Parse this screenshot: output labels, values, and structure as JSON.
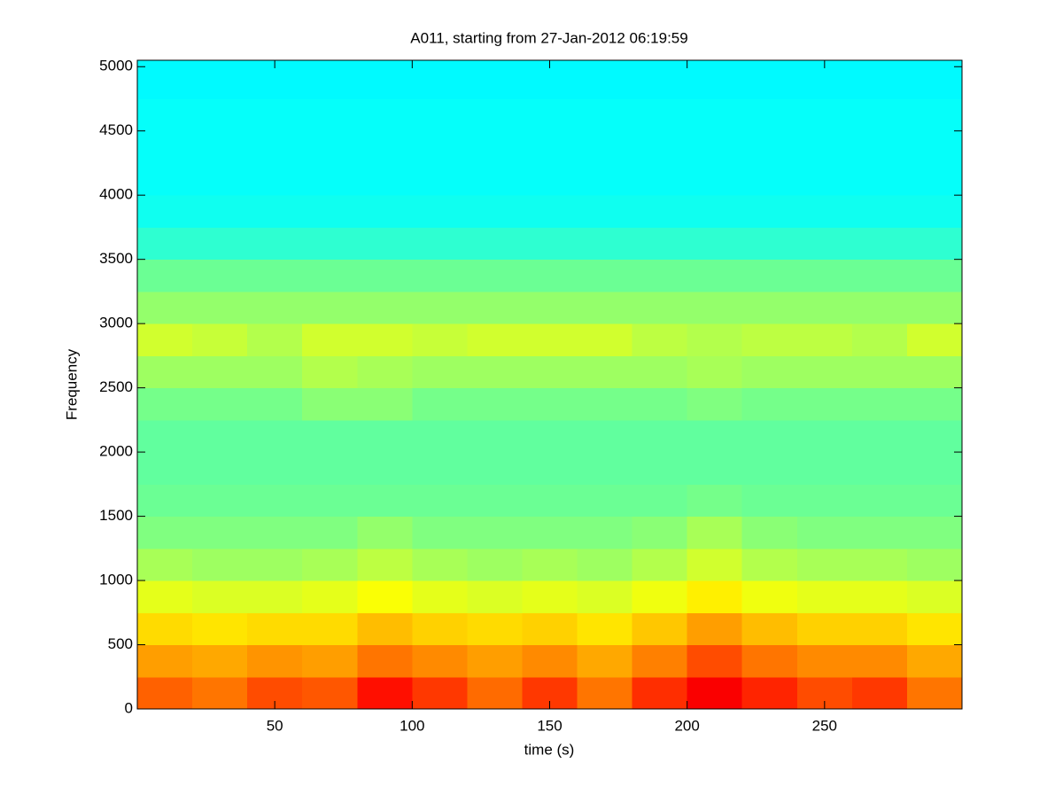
{
  "chart_data": {
    "type": "heatmap",
    "title": "A011, starting from 27-Jan-2012 06:19:59",
    "x_label": "time (s)",
    "y_label": "Frequency",
    "colormap": "jet",
    "x": [
      0,
      20,
      40,
      60,
      80,
      100,
      120,
      140,
      160,
      180,
      200,
      220,
      240,
      260,
      280,
      300
    ],
    "y": [
      0,
      250,
      500,
      750,
      1000,
      1250,
      1500,
      1750,
      2000,
      2250,
      2500,
      2750,
      3000,
      3250,
      3500,
      3750,
      4000,
      4250,
      4500,
      4750,
      5050
    ],
    "values": [
      [
        0.78,
        0.76,
        0.8,
        0.79,
        0.86,
        0.82,
        0.77,
        0.82,
        0.76,
        0.83,
        0.88,
        0.84,
        0.8,
        0.82,
        0.76
      ],
      [
        0.72,
        0.71,
        0.73,
        0.72,
        0.76,
        0.74,
        0.72,
        0.74,
        0.71,
        0.75,
        0.8,
        0.76,
        0.74,
        0.74,
        0.71
      ],
      [
        0.66,
        0.65,
        0.66,
        0.66,
        0.69,
        0.67,
        0.66,
        0.67,
        0.65,
        0.68,
        0.72,
        0.69,
        0.67,
        0.67,
        0.65
      ],
      [
        0.6,
        0.59,
        0.59,
        0.6,
        0.62,
        0.6,
        0.59,
        0.6,
        0.59,
        0.61,
        0.64,
        0.61,
        0.6,
        0.6,
        0.59
      ],
      [
        0.54,
        0.53,
        0.53,
        0.54,
        0.56,
        0.54,
        0.53,
        0.54,
        0.53,
        0.55,
        0.58,
        0.55,
        0.54,
        0.54,
        0.53
      ],
      [
        0.5,
        0.5,
        0.5,
        0.5,
        0.52,
        0.5,
        0.5,
        0.5,
        0.5,
        0.51,
        0.54,
        0.51,
        0.5,
        0.5,
        0.5
      ],
      [
        0.48,
        0.48,
        0.48,
        0.48,
        0.48,
        0.48,
        0.48,
        0.48,
        0.48,
        0.48,
        0.49,
        0.48,
        0.48,
        0.48,
        0.48
      ],
      [
        0.47,
        0.47,
        0.47,
        0.47,
        0.47,
        0.47,
        0.47,
        0.47,
        0.47,
        0.47,
        0.47,
        0.47,
        0.47,
        0.47,
        0.47
      ],
      [
        0.47,
        0.47,
        0.47,
        0.47,
        0.47,
        0.47,
        0.47,
        0.47,
        0.47,
        0.47,
        0.47,
        0.47,
        0.47,
        0.47,
        0.47
      ],
      [
        0.49,
        0.49,
        0.49,
        0.51,
        0.51,
        0.49,
        0.49,
        0.49,
        0.49,
        0.49,
        0.5,
        0.49,
        0.49,
        0.49,
        0.49
      ],
      [
        0.53,
        0.53,
        0.53,
        0.55,
        0.54,
        0.53,
        0.53,
        0.53,
        0.53,
        0.53,
        0.54,
        0.53,
        0.53,
        0.53,
        0.53
      ],
      [
        0.58,
        0.57,
        0.55,
        0.58,
        0.58,
        0.57,
        0.58,
        0.58,
        0.58,
        0.56,
        0.55,
        0.56,
        0.56,
        0.55,
        0.58
      ],
      [
        0.52,
        0.52,
        0.52,
        0.52,
        0.52,
        0.52,
        0.52,
        0.52,
        0.52,
        0.52,
        0.52,
        0.52,
        0.52,
        0.52,
        0.52
      ],
      [
        0.48,
        0.48,
        0.48,
        0.48,
        0.48,
        0.48,
        0.48,
        0.48,
        0.48,
        0.48,
        0.48,
        0.48,
        0.48,
        0.48,
        0.48
      ],
      [
        0.42,
        0.42,
        0.42,
        0.42,
        0.42,
        0.42,
        0.42,
        0.42,
        0.42,
        0.42,
        0.42,
        0.42,
        0.42,
        0.42,
        0.42
      ],
      [
        0.39,
        0.39,
        0.39,
        0.39,
        0.39,
        0.39,
        0.39,
        0.39,
        0.39,
        0.39,
        0.39,
        0.39,
        0.39,
        0.39,
        0.39
      ],
      [
        0.38,
        0.38,
        0.38,
        0.38,
        0.38,
        0.38,
        0.38,
        0.38,
        0.38,
        0.38,
        0.38,
        0.38,
        0.38,
        0.38,
        0.38
      ],
      [
        0.38,
        0.38,
        0.38,
        0.38,
        0.38,
        0.38,
        0.38,
        0.38,
        0.38,
        0.38,
        0.38,
        0.38,
        0.38,
        0.38,
        0.38
      ],
      [
        0.38,
        0.38,
        0.38,
        0.38,
        0.38,
        0.38,
        0.38,
        0.38,
        0.38,
        0.38,
        0.38,
        0.38,
        0.38,
        0.38,
        0.38
      ],
      [
        0.37,
        0.37,
        0.37,
        0.37,
        0.37,
        0.37,
        0.37,
        0.37,
        0.37,
        0.37,
        0.37,
        0.37,
        0.37,
        0.37,
        0.37
      ]
    ],
    "xlim": [
      0,
      300
    ],
    "xticks": [
      50,
      100,
      150,
      200,
      250
    ],
    "ylim": [
      0,
      5050
    ],
    "yticks": [
      0,
      500,
      1000,
      1500,
      2000,
      2500,
      3000,
      3500,
      4000,
      4500,
      5000
    ]
  }
}
